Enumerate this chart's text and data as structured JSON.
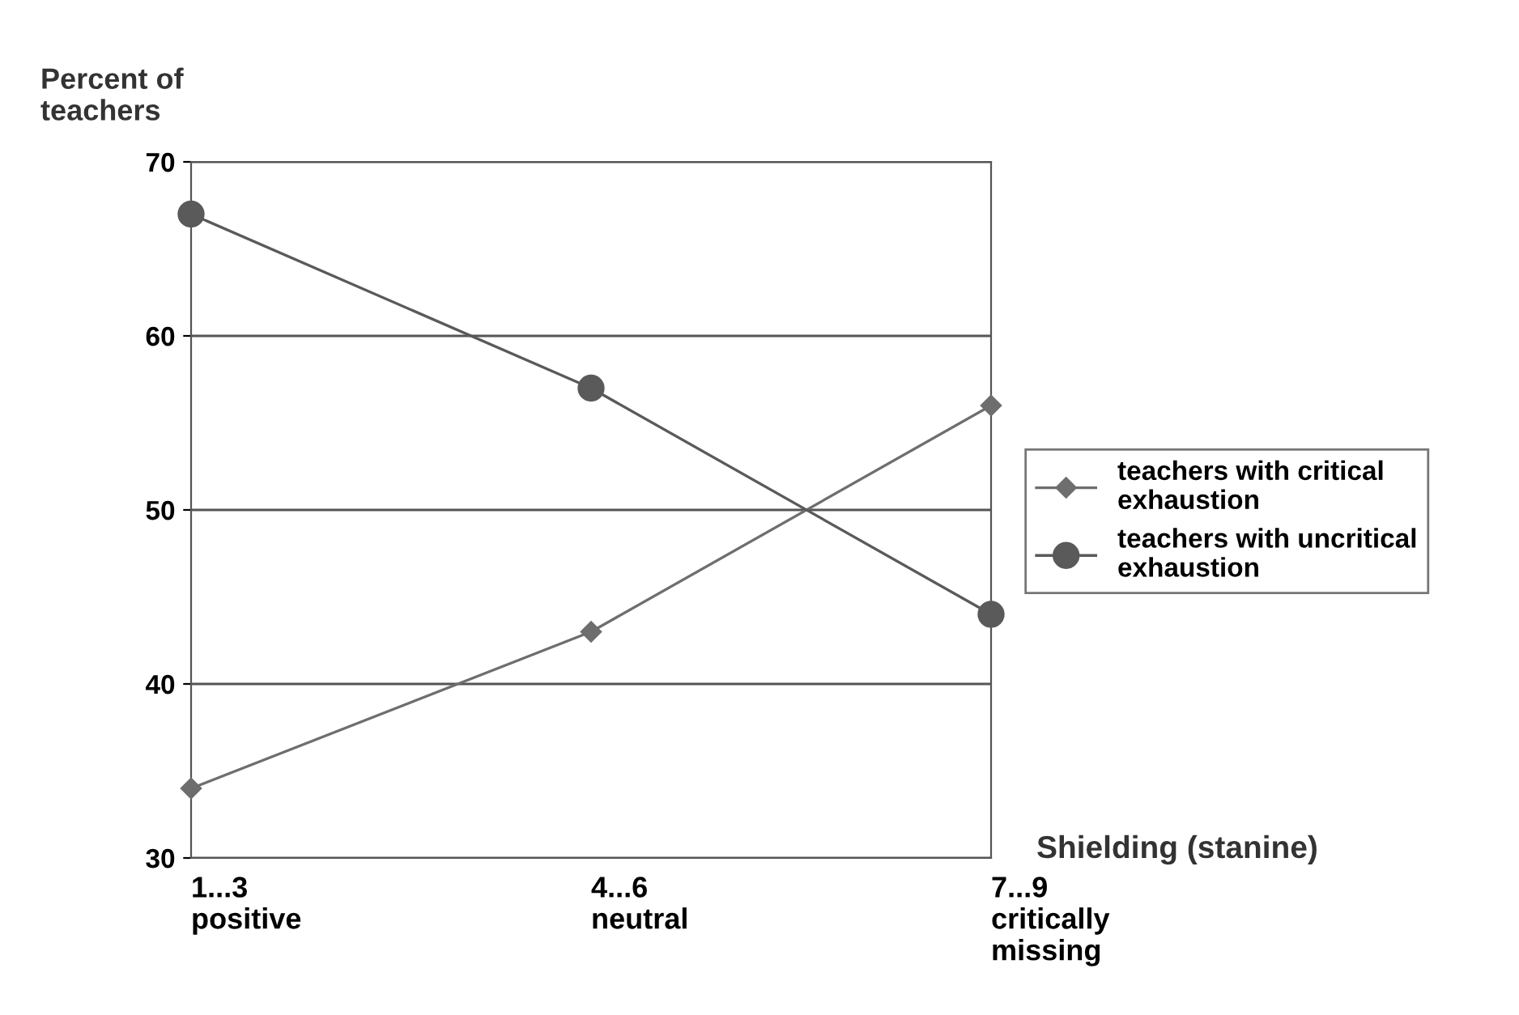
{
  "chart_data": {
    "type": "line",
    "ylabel": "Percent of\nteachers",
    "xlabel": "Shielding (stanine)",
    "categories": [
      "1...3\npositive",
      "4...6\nneutral",
      "7...9\ncritically\nmissing"
    ],
    "series": [
      {
        "name": "teachers with critical\nexhaustion",
        "color": "#6e6e6e",
        "marker": "diamond",
        "values": [
          34,
          43,
          56
        ]
      },
      {
        "name": "teachers with uncritical\nexhaustion",
        "color": "#5a5a5a",
        "marker": "circle",
        "values": [
          67,
          57,
          44
        ]
      }
    ],
    "ylim": [
      30,
      70
    ],
    "yticks": [
      30,
      40,
      50,
      60,
      70
    ],
    "grid": "y",
    "legend": "right",
    "line_style": "solid"
  }
}
